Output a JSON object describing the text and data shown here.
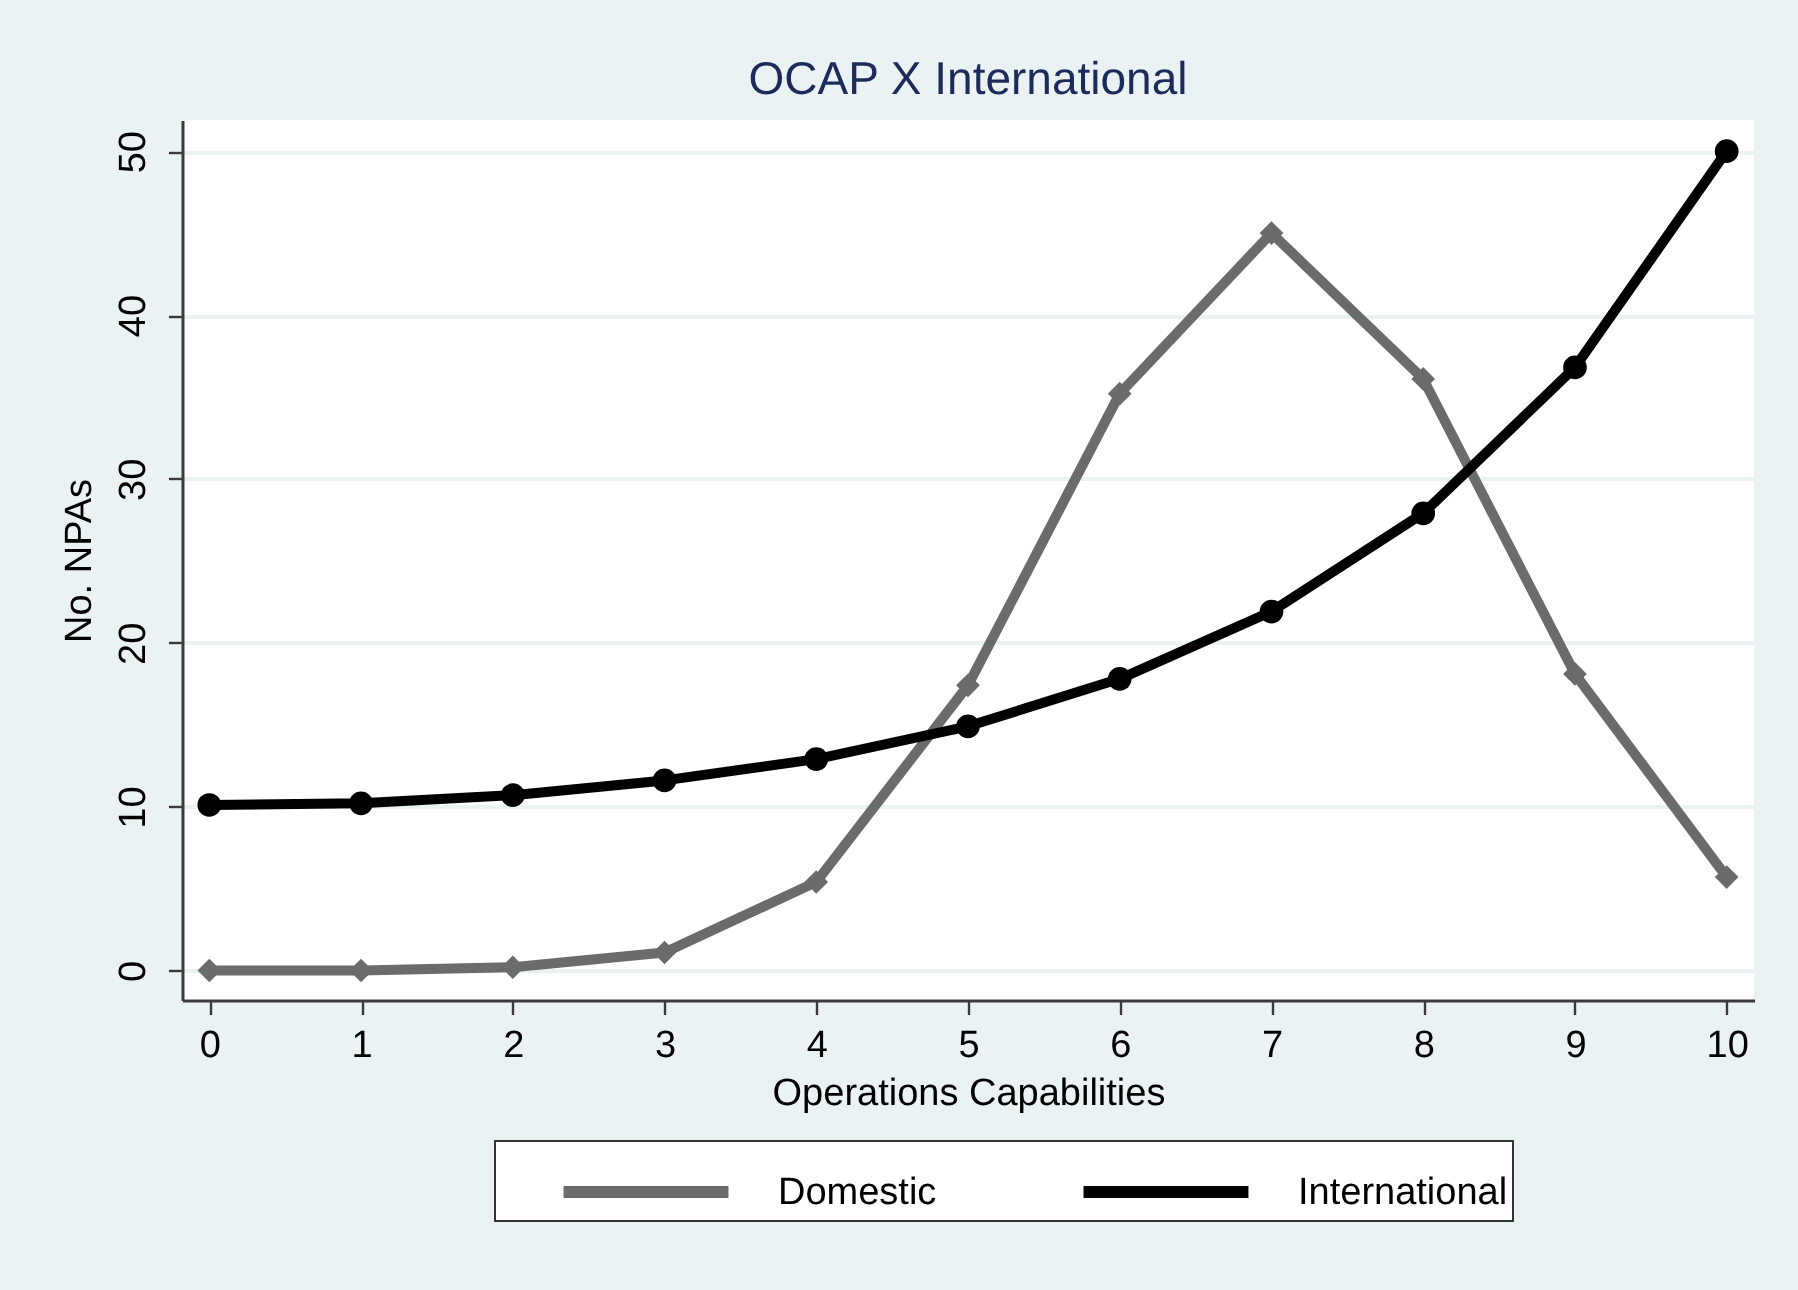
{
  "chart_data": {
    "type": "line",
    "title": "OCAP X International",
    "xlabel": "Operations Capabilities",
    "ylabel": "No. NPAs",
    "x": [
      0,
      1,
      2,
      3,
      4,
      5,
      6,
      7,
      8,
      9,
      10
    ],
    "xlim": [
      -0.18,
      10.18
    ],
    "xticks": [
      0,
      1,
      2,
      3,
      4,
      5,
      6,
      7,
      8,
      9,
      10
    ],
    "ylim": [
      -1.8,
      51.9
    ],
    "yticks": [
      0,
      10,
      20,
      30,
      40,
      50
    ],
    "grid": "y",
    "legend": "bottom",
    "line_style": "solid",
    "series": [
      {
        "name": "Domestic",
        "color": "#6b6b6b",
        "marker": "diamond",
        "values": [
          0,
          0,
          0.2,
          1.1,
          5.4,
          17.4,
          35.2,
          45.0,
          36.1,
          18.1,
          5.7
        ]
      },
      {
        "name": "International",
        "color": "#000000",
        "marker": "circle",
        "values": [
          10.1,
          10.2,
          10.7,
          11.6,
          12.9,
          14.9,
          17.8,
          21.9,
          27.9,
          36.8,
          50.0
        ]
      }
    ]
  }
}
